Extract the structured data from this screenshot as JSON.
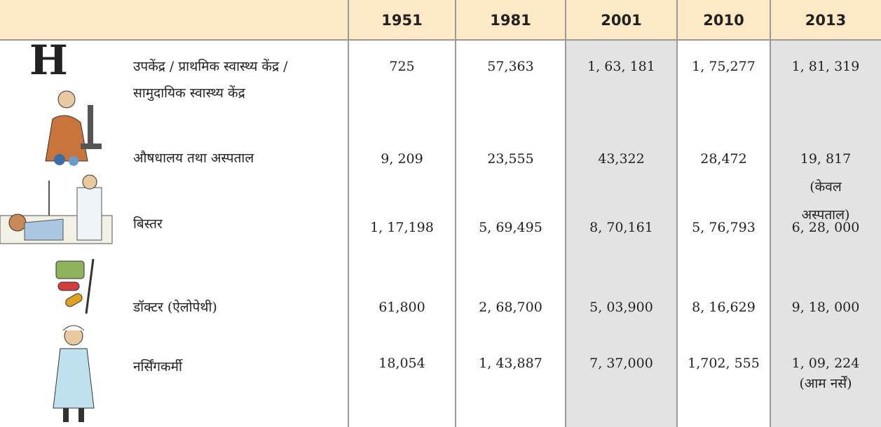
{
  "table": {
    "header": [
      "1951",
      "1981",
      "2001",
      "2010",
      "2013"
    ],
    "rows": [
      {
        "icon": "H",
        "label": "उपकेंद्र / प्राथमिक स्वास्थ्य केंद्र /\nसामुदायिक स्वास्थ्य केंद्र",
        "cells": [
          "725",
          "57,363",
          "1, 63, 181",
          "1, 75,277",
          "1, 81, 319"
        ]
      },
      {
        "label": "औषधालय तथा अस्पताल",
        "cells": [
          "9, 209",
          "23,555",
          "43,322",
          "28,472",
          "19, 817\n(केवल\nअस्पताल)"
        ]
      },
      {
        "label": "बिस्तर",
        "cells": [
          "1, 17,198",
          "5, 69,495",
          "8, 70,161",
          "5, 76,793",
          "6, 28, 000"
        ]
      },
      {
        "label": "डॉक्टर (ऐलोपेथी)",
        "cells": [
          "61,800",
          "2, 68,700",
          "5, 03,900",
          "8, 16,629",
          "9, 18, 000"
        ]
      },
      {
        "label": "नर्सिंगकर्मी",
        "cells": [
          "18,054",
          "1, 43,887",
          "7, 37,000",
          "1,702, 555",
          "1, 09, 224\n(आम नर्सें)"
        ]
      }
    ]
  }
}
